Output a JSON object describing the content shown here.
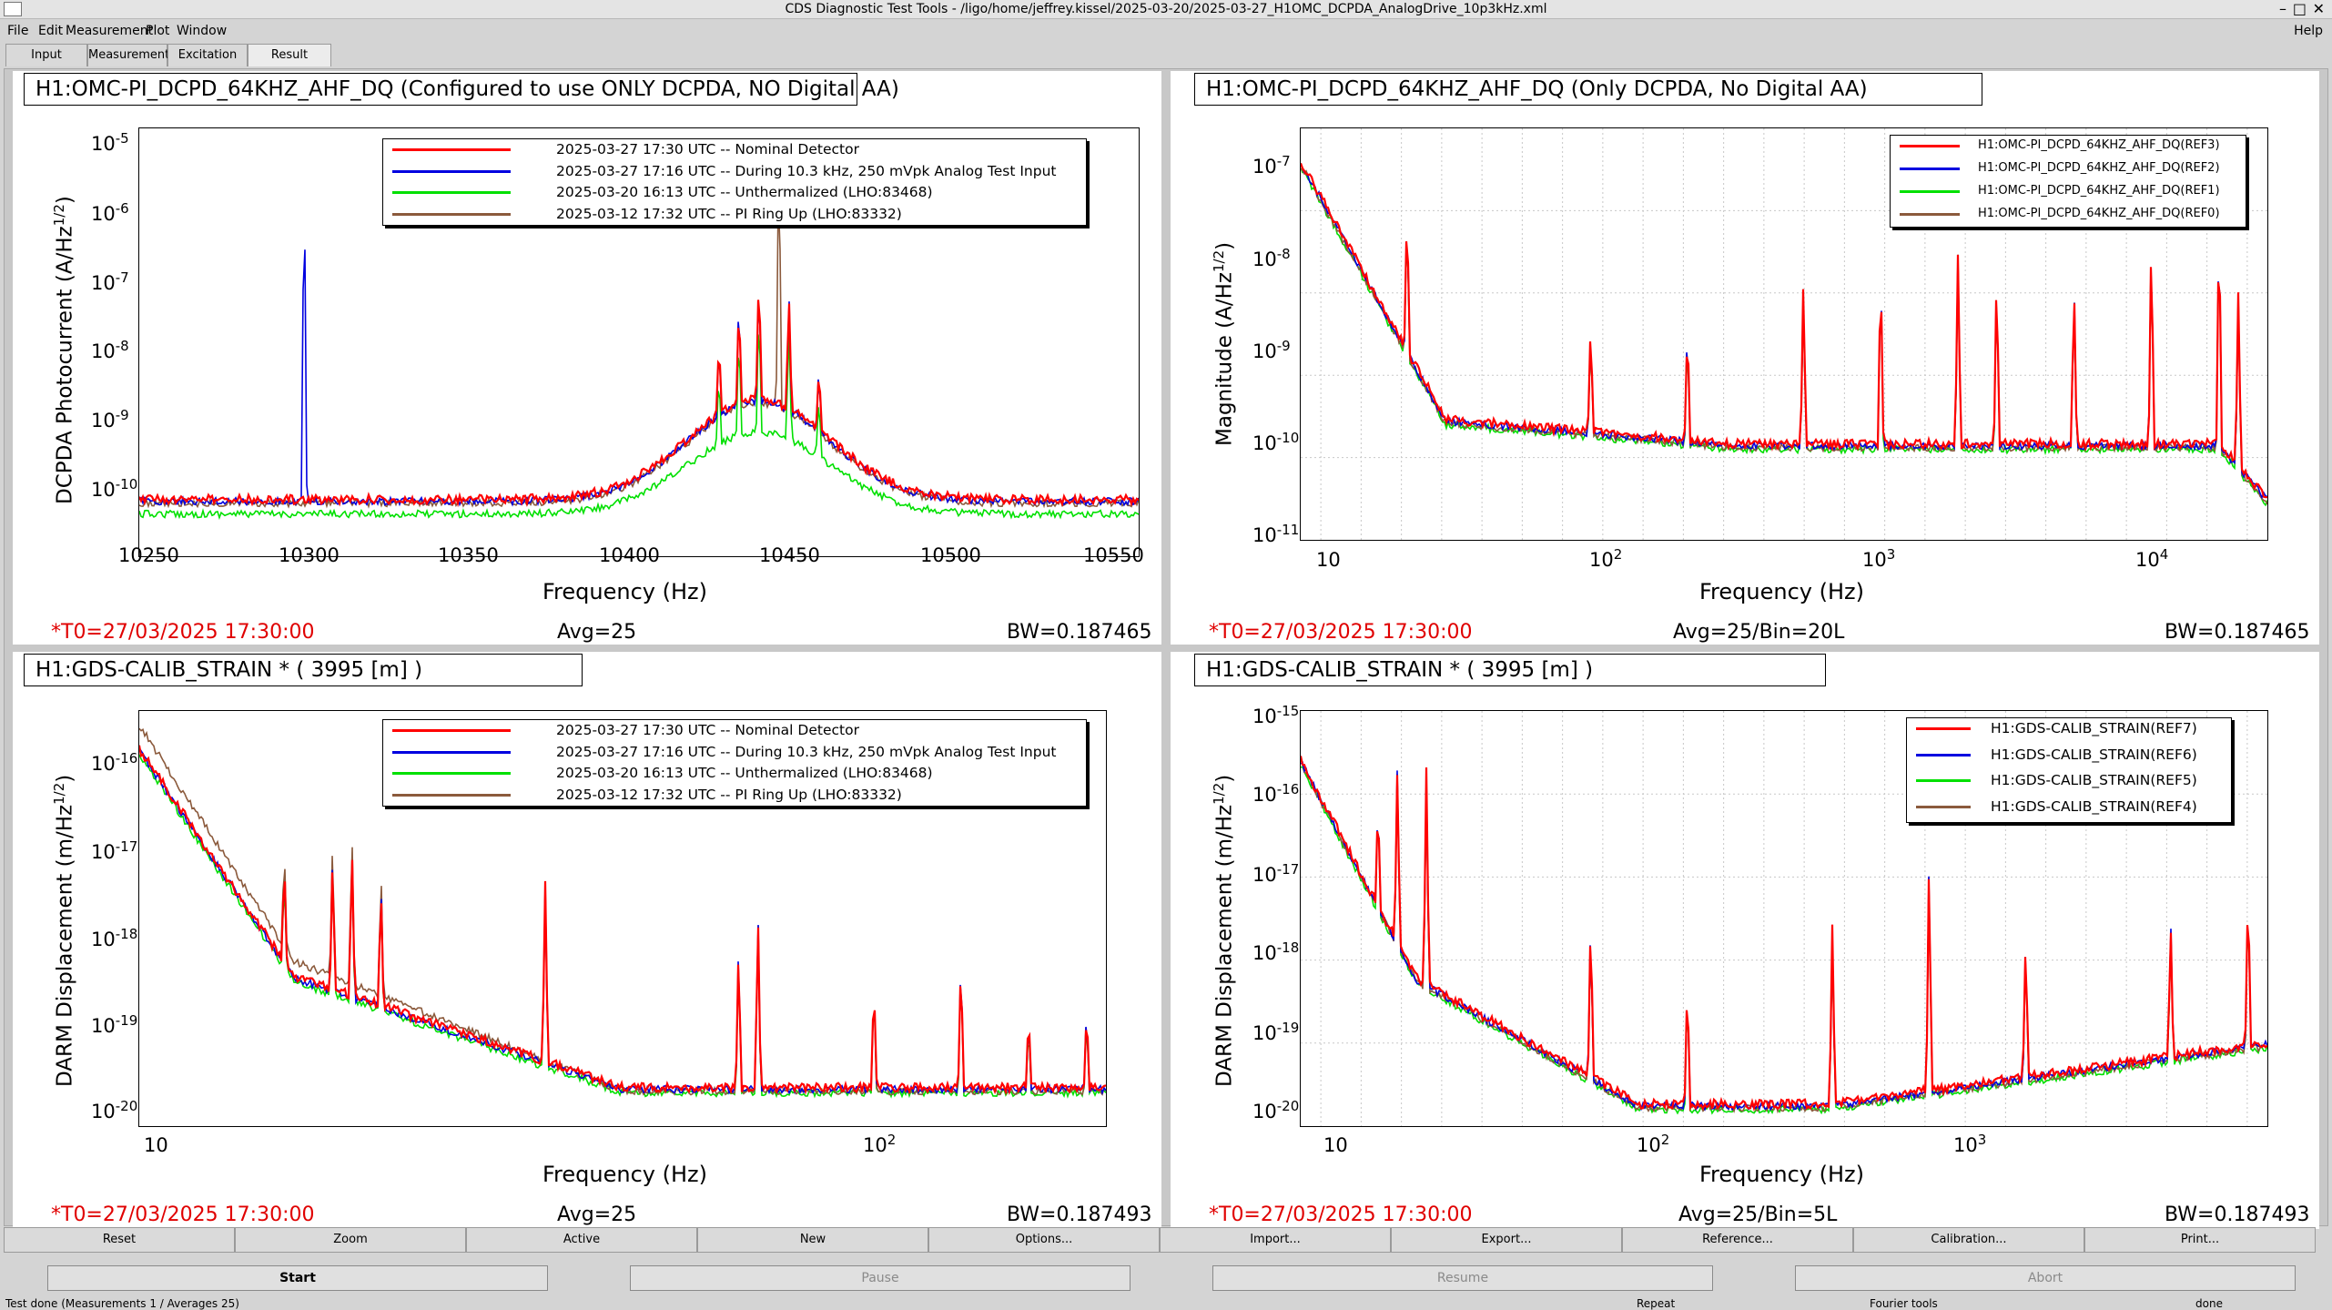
{
  "window": {
    "title": "CDS Diagnostic Test Tools - /ligo/home/jeffrey.kissel/2025-03-20/2025-03-27_H1OMC_DCPDA_AnalogDrive_10p3kHz.xml",
    "help": "Help"
  },
  "menu": [
    "File",
    "Edit",
    "Measurement",
    "Plot",
    "Window"
  ],
  "tabs": [
    "Input",
    "Measurement",
    "Excitation",
    "Result"
  ],
  "active_tab": "Result",
  "colors": {
    "red": "#ff0000",
    "blue": "#0000e0",
    "green": "#00e000",
    "brown": "#8b5a3c",
    "accent_red": "#e00000"
  },
  "panels": [
    {
      "title": "H1:OMC-PI_DCPD_64KHZ_AHF_DQ (Configured to use ONLY DCPDA, NO Digital AA)",
      "ylabel": "DCPDA Photocurrent (A/Hz^(1/2))",
      "ylabel_main": "DCPDA Photocurrent (A/Hz",
      "ylabel_sup": "1/2",
      "ylabel_end": ")",
      "xlabel": "Frequency (Hz)",
      "footer": {
        "t0": "*T0=27/03/2025 17:30:00",
        "avg": "Avg=25",
        "bw": "BW=0.187465"
      },
      "legend": [
        {
          "text": "2025-03-27 17:30 UTC -- Nominal Detector",
          "color": "red"
        },
        {
          "text": "2025-03-27 17:16 UTC -- During 10.3 kHz, 250 mVpk Analog Test Input",
          "color": "blue"
        },
        {
          "text": "2025-03-20 16:13 UTC -- Unthermalized (LHO:83468)",
          "color": "green"
        },
        {
          "text": "2025-03-12 17:32 UTC -- PI Ring Up (LHO:83332)",
          "color": "brown"
        }
      ],
      "x_ticks": [
        "10250",
        "10300",
        "10350",
        "10400",
        "10450",
        "10500",
        "10550"
      ],
      "y_ticks": [
        {
          "b": "10",
          "e": "-5"
        },
        {
          "b": "10",
          "e": "-6"
        },
        {
          "b": "10",
          "e": "-7"
        },
        {
          "b": "10",
          "e": "-8"
        },
        {
          "b": "10",
          "e": "-9"
        },
        {
          "b": "10",
          "e": "-10"
        }
      ]
    },
    {
      "title": "H1:OMC-PI_DCPD_64KHZ_AHF_DQ (Only DCPDA, No Digital AA)",
      "ylabel": "Magnitude (A/Hz^(1/2))",
      "ylabel_main": "Magnitude (A/Hz",
      "ylabel_sup": "1/2",
      "ylabel_end": ")",
      "xlabel": "Frequency (Hz)",
      "footer": {
        "t0": "*T0=27/03/2025 17:30:00",
        "avg": "Avg=25/Bin=20L",
        "bw": "BW=0.187465"
      },
      "legend": [
        {
          "text": "H1:OMC-PI_DCPD_64KHZ_AHF_DQ(REF3)",
          "color": "red"
        },
        {
          "text": "H1:OMC-PI_DCPD_64KHZ_AHF_DQ(REF2)",
          "color": "blue"
        },
        {
          "text": "H1:OMC-PI_DCPD_64KHZ_AHF_DQ(REF1)",
          "color": "green"
        },
        {
          "text": "H1:OMC-PI_DCPD_64KHZ_AHF_DQ(REF0)",
          "color": "brown"
        }
      ],
      "x_ticks": [
        {
          "b": "10",
          "e": ""
        },
        {
          "b": "10",
          "e": "2"
        },
        {
          "b": "10",
          "e": "3"
        },
        {
          "b": "10",
          "e": "4"
        }
      ],
      "y_ticks": [
        {
          "b": "10",
          "e": "-7"
        },
        {
          "b": "10",
          "e": "-8"
        },
        {
          "b": "10",
          "e": "-9"
        },
        {
          "b": "10",
          "e": "-10"
        },
        {
          "b": "10",
          "e": "-11"
        }
      ]
    },
    {
      "title": "H1:GDS-CALIB_STRAIN * ( 3995 [m] )",
      "ylabel": "DARM Displacement (m/Hz^(1/2))",
      "ylabel_main": "DARM Displacement (m/Hz",
      "ylabel_sup": "1/2",
      "ylabel_end": ")",
      "xlabel": "Frequency (Hz)",
      "footer": {
        "t0": "*T0=27/03/2025 17:30:00",
        "avg": "Avg=25",
        "bw": "BW=0.187493"
      },
      "legend": [
        {
          "text": "2025-03-27 17:30 UTC -- Nominal Detector",
          "color": "red"
        },
        {
          "text": "2025-03-27 17:16 UTC -- During 10.3 kHz, 250 mVpk Analog Test Input",
          "color": "blue"
        },
        {
          "text": "2025-03-20 16:13 UTC -- Unthermalized (LHO:83468)",
          "color": "green"
        },
        {
          "text": "2025-03-12 17:32 UTC -- PI Ring Up (LHO:83332)",
          "color": "brown"
        }
      ],
      "x_ticks": [
        {
          "b": "10",
          "e": ""
        },
        {
          "b": "10",
          "e": "2"
        }
      ],
      "y_ticks": [
        {
          "b": "10",
          "e": "-16"
        },
        {
          "b": "10",
          "e": "-17"
        },
        {
          "b": "10",
          "e": "-18"
        },
        {
          "b": "10",
          "e": "-19"
        },
        {
          "b": "10",
          "e": "-20"
        }
      ]
    },
    {
      "title": "H1:GDS-CALIB_STRAIN * ( 3995 [m] )",
      "ylabel": "DARM Displacement (m/Hz^(1/2))",
      "ylabel_main": "DARM Displacement (m/Hz",
      "ylabel_sup": "1/2",
      "ylabel_end": ")",
      "xlabel": "Frequency (Hz)",
      "footer": {
        "t0": "*T0=27/03/2025 17:30:00",
        "avg": "Avg=25/Bin=5L",
        "bw": "BW=0.187493"
      },
      "legend": [
        {
          "text": "H1:GDS-CALIB_STRAIN(REF7)",
          "color": "red"
        },
        {
          "text": "H1:GDS-CALIB_STRAIN(REF6)",
          "color": "blue"
        },
        {
          "text": "H1:GDS-CALIB_STRAIN(REF5)",
          "color": "green"
        },
        {
          "text": "H1:GDS-CALIB_STRAIN(REF4)",
          "color": "brown"
        }
      ],
      "x_ticks": [
        {
          "b": "10",
          "e": ""
        },
        {
          "b": "10",
          "e": "2"
        },
        {
          "b": "10",
          "e": "3"
        }
      ],
      "y_ticks": [
        {
          "b": "10",
          "e": "-15"
        },
        {
          "b": "10",
          "e": "-16"
        },
        {
          "b": "10",
          "e": "-17"
        },
        {
          "b": "10",
          "e": "-18"
        },
        {
          "b": "10",
          "e": "-19"
        },
        {
          "b": "10",
          "e": "-20"
        }
      ]
    }
  ],
  "plot_buttons": [
    "Reset",
    "Zoom",
    "Active",
    "New",
    "Options...",
    "Import...",
    "Export...",
    "Reference...",
    "Calibration...",
    "Print..."
  ],
  "control_buttons": [
    "Start",
    "Pause",
    "Resume",
    "Abort"
  ],
  "status": {
    "main": "Test done (Measurements 1 / Averages 25)",
    "repeat": "Repeat",
    "tools": "Fourier tools",
    "state": "done"
  }
}
